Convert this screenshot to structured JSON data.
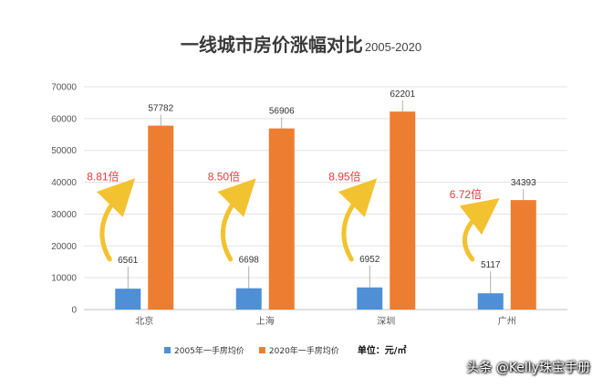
{
  "chart_data": {
    "type": "bar",
    "title": "一线城市房价涨幅对比",
    "subtitle": "2005-2020",
    "categories": [
      "北京",
      "上海",
      "深圳",
      "广州"
    ],
    "series": [
      {
        "name": "2005年一手房均价",
        "color": "#4e8fd6",
        "values": [
          6561,
          6698,
          6952,
          5117
        ]
      },
      {
        "name": "2020年一手房均价",
        "color": "#ed7d31",
        "values": [
          57782,
          56906,
          62201,
          34393
        ]
      }
    ],
    "ratios": [
      "8.81倍",
      "8.50倍",
      "8.95倍",
      "6.72倍"
    ],
    "ylim": [
      0,
      70000
    ],
    "yticks": [
      0,
      10000,
      20000,
      30000,
      40000,
      50000,
      60000,
      70000
    ],
    "grid": true,
    "legend": "bottom",
    "unit_label": "单位：元/㎡",
    "arrow_color": "#f2c230"
  },
  "watermark": "头条 @Kelly珠宝手册"
}
